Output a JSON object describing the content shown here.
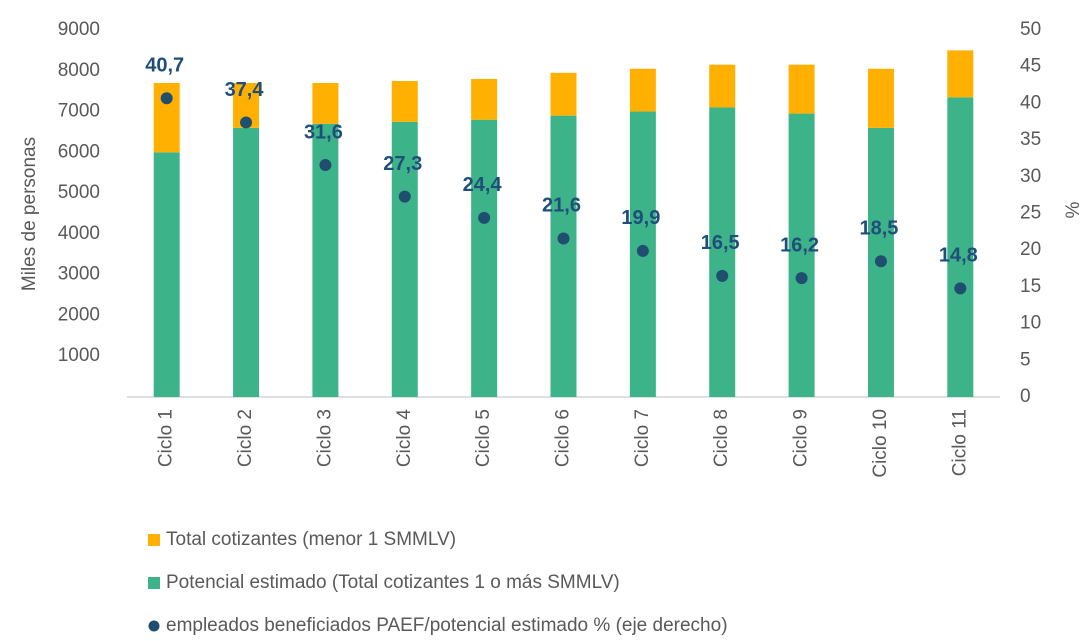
{
  "chart_data": {
    "type": "bar",
    "stacked": true,
    "categories": [
      "Ciclo 1",
      "Ciclo 2",
      "Ciclo 3",
      "Ciclo 4",
      "Ciclo 5",
      "Ciclo 6",
      "Ciclo 7",
      "Ciclo 8",
      "Ciclo 9",
      "Ciclo 10",
      "Ciclo 11"
    ],
    "ylabel": "Miles de personas",
    "y2label": "%",
    "ylim": [
      0,
      9000
    ],
    "yticks": [
      1000,
      2000,
      3000,
      4000,
      5000,
      6000,
      7000,
      8000,
      9000
    ],
    "y2lim": [
      0,
      50
    ],
    "y2ticks": [
      0,
      5,
      10,
      15,
      20,
      25,
      30,
      35,
      40,
      45,
      50
    ],
    "grid": false,
    "legend": "bottom",
    "series": [
      {
        "name": "Total cotizantes (menor 1 SMMLV)",
        "color": "#ffb000",
        "mark": "bar",
        "values": [
          1700,
          1100,
          1000,
          1000,
          1000,
          1050,
          1050,
          1050,
          1200,
          1450,
          1150
        ]
      },
      {
        "name": "Potencial estimado (Total cotizantes 1 o más SMMLV)",
        "color": "#3db38a",
        "mark": "bar",
        "values": [
          6000,
          6600,
          6700,
          6750,
          6800,
          6900,
          7000,
          7100,
          6950,
          6600,
          7350
        ]
      },
      {
        "name": "empleados beneficiados PAEF/potencial estimado % (eje derecho)",
        "color": "#1f4e6e",
        "mark": "dot",
        "axis": "y2",
        "values": [
          40.7,
          37.4,
          31.6,
          27.3,
          24.4,
          21.6,
          19.9,
          16.5,
          16.2,
          18.5,
          14.8
        ],
        "value_labels": [
          "40,7",
          "37,4",
          "31,6",
          "27,3",
          "24,4",
          "21,6",
          "19,9",
          "16,5",
          "16,2",
          "18,5",
          "14,8"
        ]
      }
    ]
  }
}
